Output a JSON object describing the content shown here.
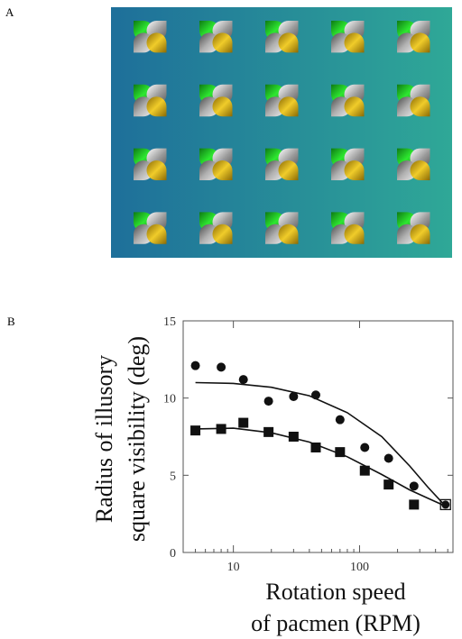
{
  "panels": {
    "a_label": "A",
    "b_label": "B"
  },
  "illusion": {
    "rows": 8,
    "cols": 10,
    "background_left": "#1e6f9a",
    "background_right": "#2fa897",
    "colors": {
      "green": "#17c41d",
      "gray": "#bfbfbf",
      "yellow": "#d9b520"
    }
  },
  "chart_data": {
    "type": "scatter",
    "xscale": "log",
    "xlim": [
      4,
      550
    ],
    "ylim": [
      0,
      15
    ],
    "xticks": [
      10,
      100
    ],
    "xtick_labels": [
      "10",
      "100"
    ],
    "yticks": [
      0,
      5,
      10,
      15
    ],
    "ytick_labels": [
      "0",
      "5",
      "10",
      "15"
    ],
    "ylabel_lines": [
      "Radius of illusory",
      "square visibility (deg)"
    ],
    "xlabel_lines": [
      "Rotation speed",
      "of pacmen (RPM)"
    ],
    "series": [
      {
        "marker": "circle",
        "x": [
          5,
          8,
          12,
          19,
          30,
          45,
          70,
          110,
          170,
          270,
          480
        ],
        "y": [
          12.1,
          12.0,
          11.2,
          9.8,
          10.1,
          10.2,
          8.6,
          6.8,
          6.1,
          4.3,
          3.1
        ],
        "fit": [
          [
            5,
            11.0
          ],
          [
            10,
            10.95
          ],
          [
            20,
            10.7
          ],
          [
            40,
            10.15
          ],
          [
            80,
            9.05
          ],
          [
            150,
            7.5
          ],
          [
            250,
            5.6
          ],
          [
            350,
            4.2
          ],
          [
            480,
            3.0
          ]
        ]
      },
      {
        "marker": "square",
        "x": [
          5,
          8,
          12,
          19,
          30,
          45,
          70,
          110,
          170,
          270,
          480
        ],
        "y": [
          7.9,
          8.0,
          8.4,
          7.8,
          7.5,
          6.8,
          6.5,
          5.3,
          4.4,
          3.1,
          3.1
        ],
        "fit": [
          [
            5,
            8.0
          ],
          [
            10,
            8.05
          ],
          [
            20,
            7.75
          ],
          [
            40,
            7.15
          ],
          [
            80,
            6.2
          ],
          [
            150,
            5.05
          ],
          [
            250,
            4.05
          ],
          [
            350,
            3.5
          ],
          [
            480,
            3.0
          ]
        ]
      }
    ]
  }
}
